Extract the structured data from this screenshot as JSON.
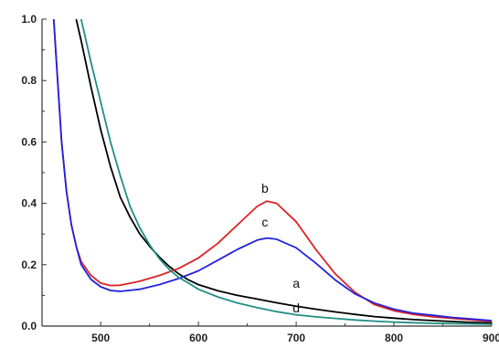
{
  "chart_data": {
    "type": "line",
    "xlabel": "",
    "ylabel": "",
    "xlim": [
      440,
      900
    ],
    "ylim": [
      0,
      1.0
    ],
    "grid": false,
    "legend": "none",
    "x_ticks": [
      500,
      600,
      700,
      800,
      900
    ],
    "x_tick_labels": [
      "500",
      "600",
      "700",
      "800",
      "900"
    ],
    "y_ticks": [
      0.0,
      0.2,
      0.4,
      0.6,
      0.8,
      1.0
    ],
    "y_tick_labels": [
      "0.0",
      "0.2",
      "0.4",
      "0.6",
      "0.8",
      "1.0"
    ],
    "series": [
      {
        "name": "a",
        "color": "#000000",
        "points": [
          [
            475,
            1.0
          ],
          [
            480,
            0.93
          ],
          [
            490,
            0.78
          ],
          [
            500,
            0.64
          ],
          [
            510,
            0.52
          ],
          [
            520,
            0.42
          ],
          [
            530,
            0.355
          ],
          [
            540,
            0.3
          ],
          [
            550,
            0.26
          ],
          [
            560,
            0.225
          ],
          [
            570,
            0.195
          ],
          [
            580,
            0.17
          ],
          [
            590,
            0.15
          ],
          [
            600,
            0.135
          ],
          [
            620,
            0.115
          ],
          [
            640,
            0.1
          ],
          [
            660,
            0.088
          ],
          [
            680,
            0.076
          ],
          [
            700,
            0.065
          ],
          [
            720,
            0.055
          ],
          [
            740,
            0.046
          ],
          [
            760,
            0.038
          ],
          [
            780,
            0.031
          ],
          [
            800,
            0.026
          ],
          [
            820,
            0.021
          ],
          [
            840,
            0.018
          ],
          [
            860,
            0.015
          ],
          [
            880,
            0.012
          ],
          [
            900,
            0.01
          ]
        ]
      },
      {
        "name": "b",
        "color": "#dd2222",
        "points": [
          [
            452,
            1.0
          ],
          [
            455,
            0.85
          ],
          [
            460,
            0.6
          ],
          [
            465,
            0.44
          ],
          [
            470,
            0.33
          ],
          [
            475,
            0.26
          ],
          [
            480,
            0.21
          ],
          [
            490,
            0.165
          ],
          [
            500,
            0.14
          ],
          [
            510,
            0.132
          ],
          [
            520,
            0.133
          ],
          [
            540,
            0.146
          ],
          [
            560,
            0.165
          ],
          [
            580,
            0.188
          ],
          [
            600,
            0.222
          ],
          [
            620,
            0.27
          ],
          [
            640,
            0.33
          ],
          [
            660,
            0.39
          ],
          [
            670,
            0.407
          ],
          [
            680,
            0.4
          ],
          [
            700,
            0.34
          ],
          [
            720,
            0.25
          ],
          [
            740,
            0.17
          ],
          [
            760,
            0.11
          ],
          [
            780,
            0.07
          ],
          [
            800,
            0.05
          ],
          [
            820,
            0.038
          ],
          [
            840,
            0.03
          ],
          [
            860,
            0.025
          ],
          [
            880,
            0.02
          ],
          [
            900,
            0.015
          ]
        ]
      },
      {
        "name": "c",
        "color": "#2222dd",
        "points": [
          [
            452,
            1.0
          ],
          [
            455,
            0.85
          ],
          [
            460,
            0.6
          ],
          [
            465,
            0.44
          ],
          [
            470,
            0.33
          ],
          [
            475,
            0.26
          ],
          [
            480,
            0.2
          ],
          [
            490,
            0.152
          ],
          [
            500,
            0.128
          ],
          [
            510,
            0.116
          ],
          [
            520,
            0.113
          ],
          [
            540,
            0.12
          ],
          [
            560,
            0.135
          ],
          [
            580,
            0.155
          ],
          [
            600,
            0.18
          ],
          [
            620,
            0.215
          ],
          [
            640,
            0.25
          ],
          [
            660,
            0.28
          ],
          [
            670,
            0.287
          ],
          [
            680,
            0.283
          ],
          [
            700,
            0.255
          ],
          [
            720,
            0.205
          ],
          [
            740,
            0.15
          ],
          [
            760,
            0.105
          ],
          [
            780,
            0.075
          ],
          [
            800,
            0.055
          ],
          [
            820,
            0.042
          ],
          [
            840,
            0.035
          ],
          [
            860,
            0.028
          ],
          [
            880,
            0.023
          ],
          [
            900,
            0.018
          ]
        ]
      },
      {
        "name": "d",
        "color": "#1f8f86",
        "points": [
          [
            480,
            1.0
          ],
          [
            490,
            0.86
          ],
          [
            500,
            0.73
          ],
          [
            510,
            0.6
          ],
          [
            520,
            0.49
          ],
          [
            530,
            0.39
          ],
          [
            540,
            0.32
          ],
          [
            550,
            0.265
          ],
          [
            560,
            0.22
          ],
          [
            570,
            0.185
          ],
          [
            580,
            0.158
          ],
          [
            590,
            0.14
          ],
          [
            600,
            0.12
          ],
          [
            620,
            0.095
          ],
          [
            640,
            0.075
          ],
          [
            660,
            0.06
          ],
          [
            680,
            0.047
          ],
          [
            700,
            0.037
          ],
          [
            720,
            0.03
          ],
          [
            740,
            0.025
          ],
          [
            760,
            0.02
          ],
          [
            780,
            0.016
          ],
          [
            800,
            0.013
          ],
          [
            820,
            0.011
          ],
          [
            840,
            0.009
          ],
          [
            860,
            0.008
          ],
          [
            880,
            0.007
          ],
          [
            900,
            0.006
          ]
        ]
      }
    ],
    "annotations": [
      {
        "text": "b",
        "x": 668,
        "y": 0.435
      },
      {
        "text": "c",
        "x": 668,
        "y": 0.325
      },
      {
        "text": "a",
        "x": 700,
        "y": 0.125
      },
      {
        "text": "d",
        "x": 700,
        "y": 0.045
      }
    ]
  }
}
